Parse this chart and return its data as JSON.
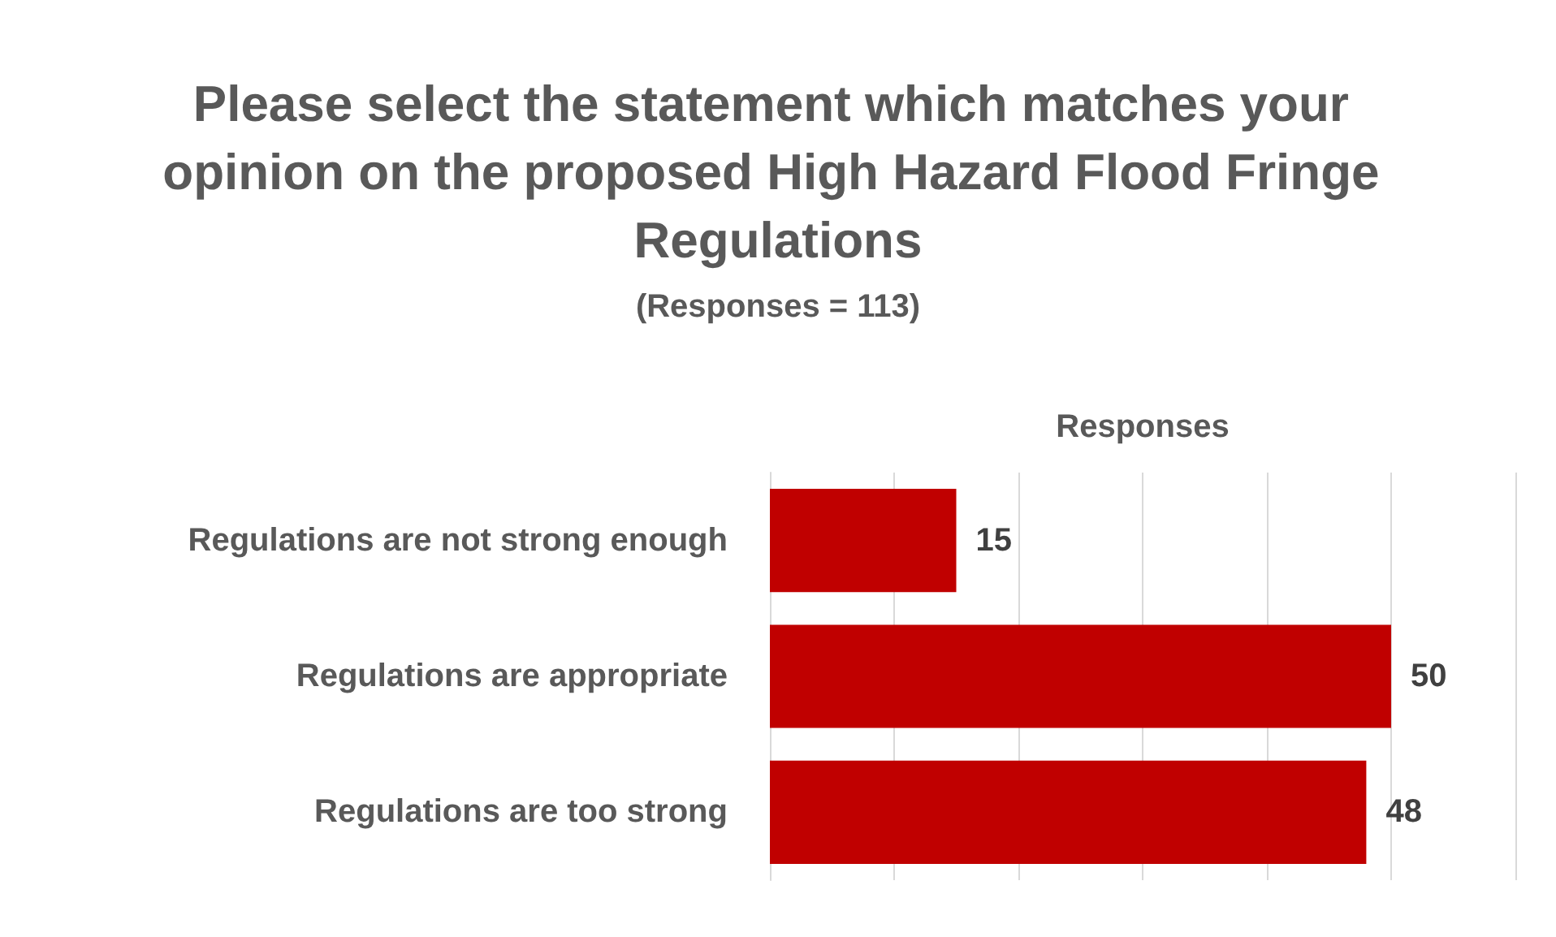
{
  "chart_data": {
    "type": "bar",
    "orientation": "horizontal",
    "title": "Please select the statement which matches your opinion on the proposed High Hazard Flood Fringe Regulations",
    "subtitle": "(Responses = 113)",
    "xlabel": "Responses",
    "categories": [
      "Regulations are not strong enough",
      "Regulations are appropriate",
      "Regulations are too strong"
    ],
    "values": [
      15,
      50,
      48
    ],
    "color": "#c00000",
    "data_labels": true,
    "xlim": [
      0,
      60
    ],
    "xticks": [
      {
        "value": 0,
        "label": null
      },
      {
        "value": 10,
        "label": null
      },
      {
        "value": 20,
        "label": null
      },
      {
        "value": 30,
        "label": null
      },
      {
        "value": 40,
        "label": null
      },
      {
        "value": 50,
        "label": null
      },
      {
        "value": 60,
        "label": null
      }
    ],
    "tick_labels": "y",
    "grid": "x"
  }
}
